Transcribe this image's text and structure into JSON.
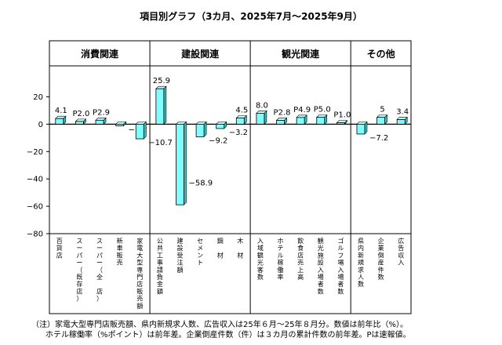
{
  "title": "項目別グラフ（3カ月、2025年7月～2025年9月）",
  "notes": [
    "（注）家電大型専門店販売額、県内新規求人数、広告収入は25年６月～25年８月分。数値は前年比（%）。",
    "ホテル稼働率（%ポイント）は前年差。企業倒産件数（件）は３カ月の累計件数の前年差。Pは速報値。"
  ],
  "chart_data": {
    "type": "bar",
    "title": "項目別グラフ（3カ月、2025年7月～2025年9月）",
    "ylim": [
      -80,
      30
    ],
    "yticks": [
      -80,
      -60,
      -40,
      -20,
      0,
      20
    ],
    "ytick_labels": [
      "−80",
      "−60",
      "−40",
      "−20",
      "0",
      "20"
    ],
    "groups": [
      {
        "name": "消費関連",
        "count": 5
      },
      {
        "name": "建設関連",
        "count": 5
      },
      {
        "name": "観光関連",
        "count": 5
      },
      {
        "name": "その他",
        "count": 3
      }
    ],
    "categories": [
      "百貨店",
      "スーパー（既存店）",
      "スーパー（全　店）",
      "新車販売",
      "家電大型専門店販売額",
      "公共工事請負金額",
      "建設受注額",
      "セメント",
      "鋼　材",
      "木　材",
      "入域観光客数",
      "ホテル稼働率",
      "飲食店売上高",
      "観光施設入場者数",
      "ゴルフ場入場者数",
      "県内新規求人数",
      "企業倒産件数",
      "広告収入"
    ],
    "values": [
      4.1,
      2.0,
      2.9,
      -1.2,
      -10.7,
      25.9,
      -58.9,
      -9.2,
      -3.2,
      4.5,
      8.0,
      2.8,
      4.9,
      5.0,
      1.0,
      -7.2,
      5,
      3.4
    ],
    "data_labels": [
      "4.1",
      "P2.0",
      "P2.9",
      "−1.2",
      "−10.7",
      "25.9",
      "−58.9",
      "−9.2",
      "−3.2",
      "4.5",
      "8.0",
      "P2.8",
      "P4.9",
      "P5.0",
      "P1.0",
      "−7.2",
      "5",
      "3.4"
    ],
    "bar_color": "#7fffff",
    "xlabel": "",
    "ylabel": ""
  }
}
